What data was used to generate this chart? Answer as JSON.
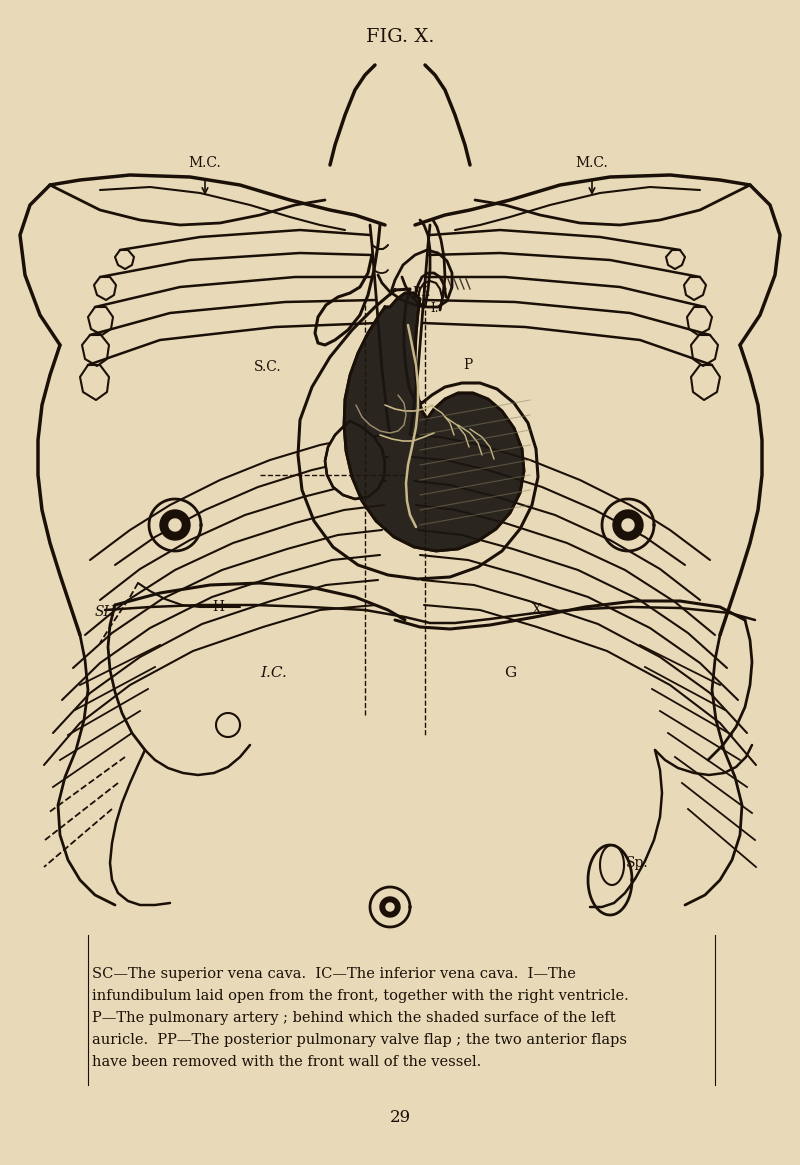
{
  "title": "FIG. X.",
  "background_color": "#e8dab8",
  "line_color": "#1a1008",
  "text_color": "#1a1008",
  "caption_line1": "SC—The superior vena cava.  IC—The inferior vena cava.  I—The",
  "caption_line2": "infundibulum laid open from the front, together with the right ventricle.",
  "caption_line3": "P—The pulmonary artery ; behind which the shaded surface of the left",
  "caption_line4": "auricle.  PP—The posterior pulmonary valve flap ; the two anterior flaps",
  "caption_line5": "have been removed with the front wall of the vessel.",
  "page_number": "29",
  "fig_width": 8.0,
  "fig_height": 11.65
}
